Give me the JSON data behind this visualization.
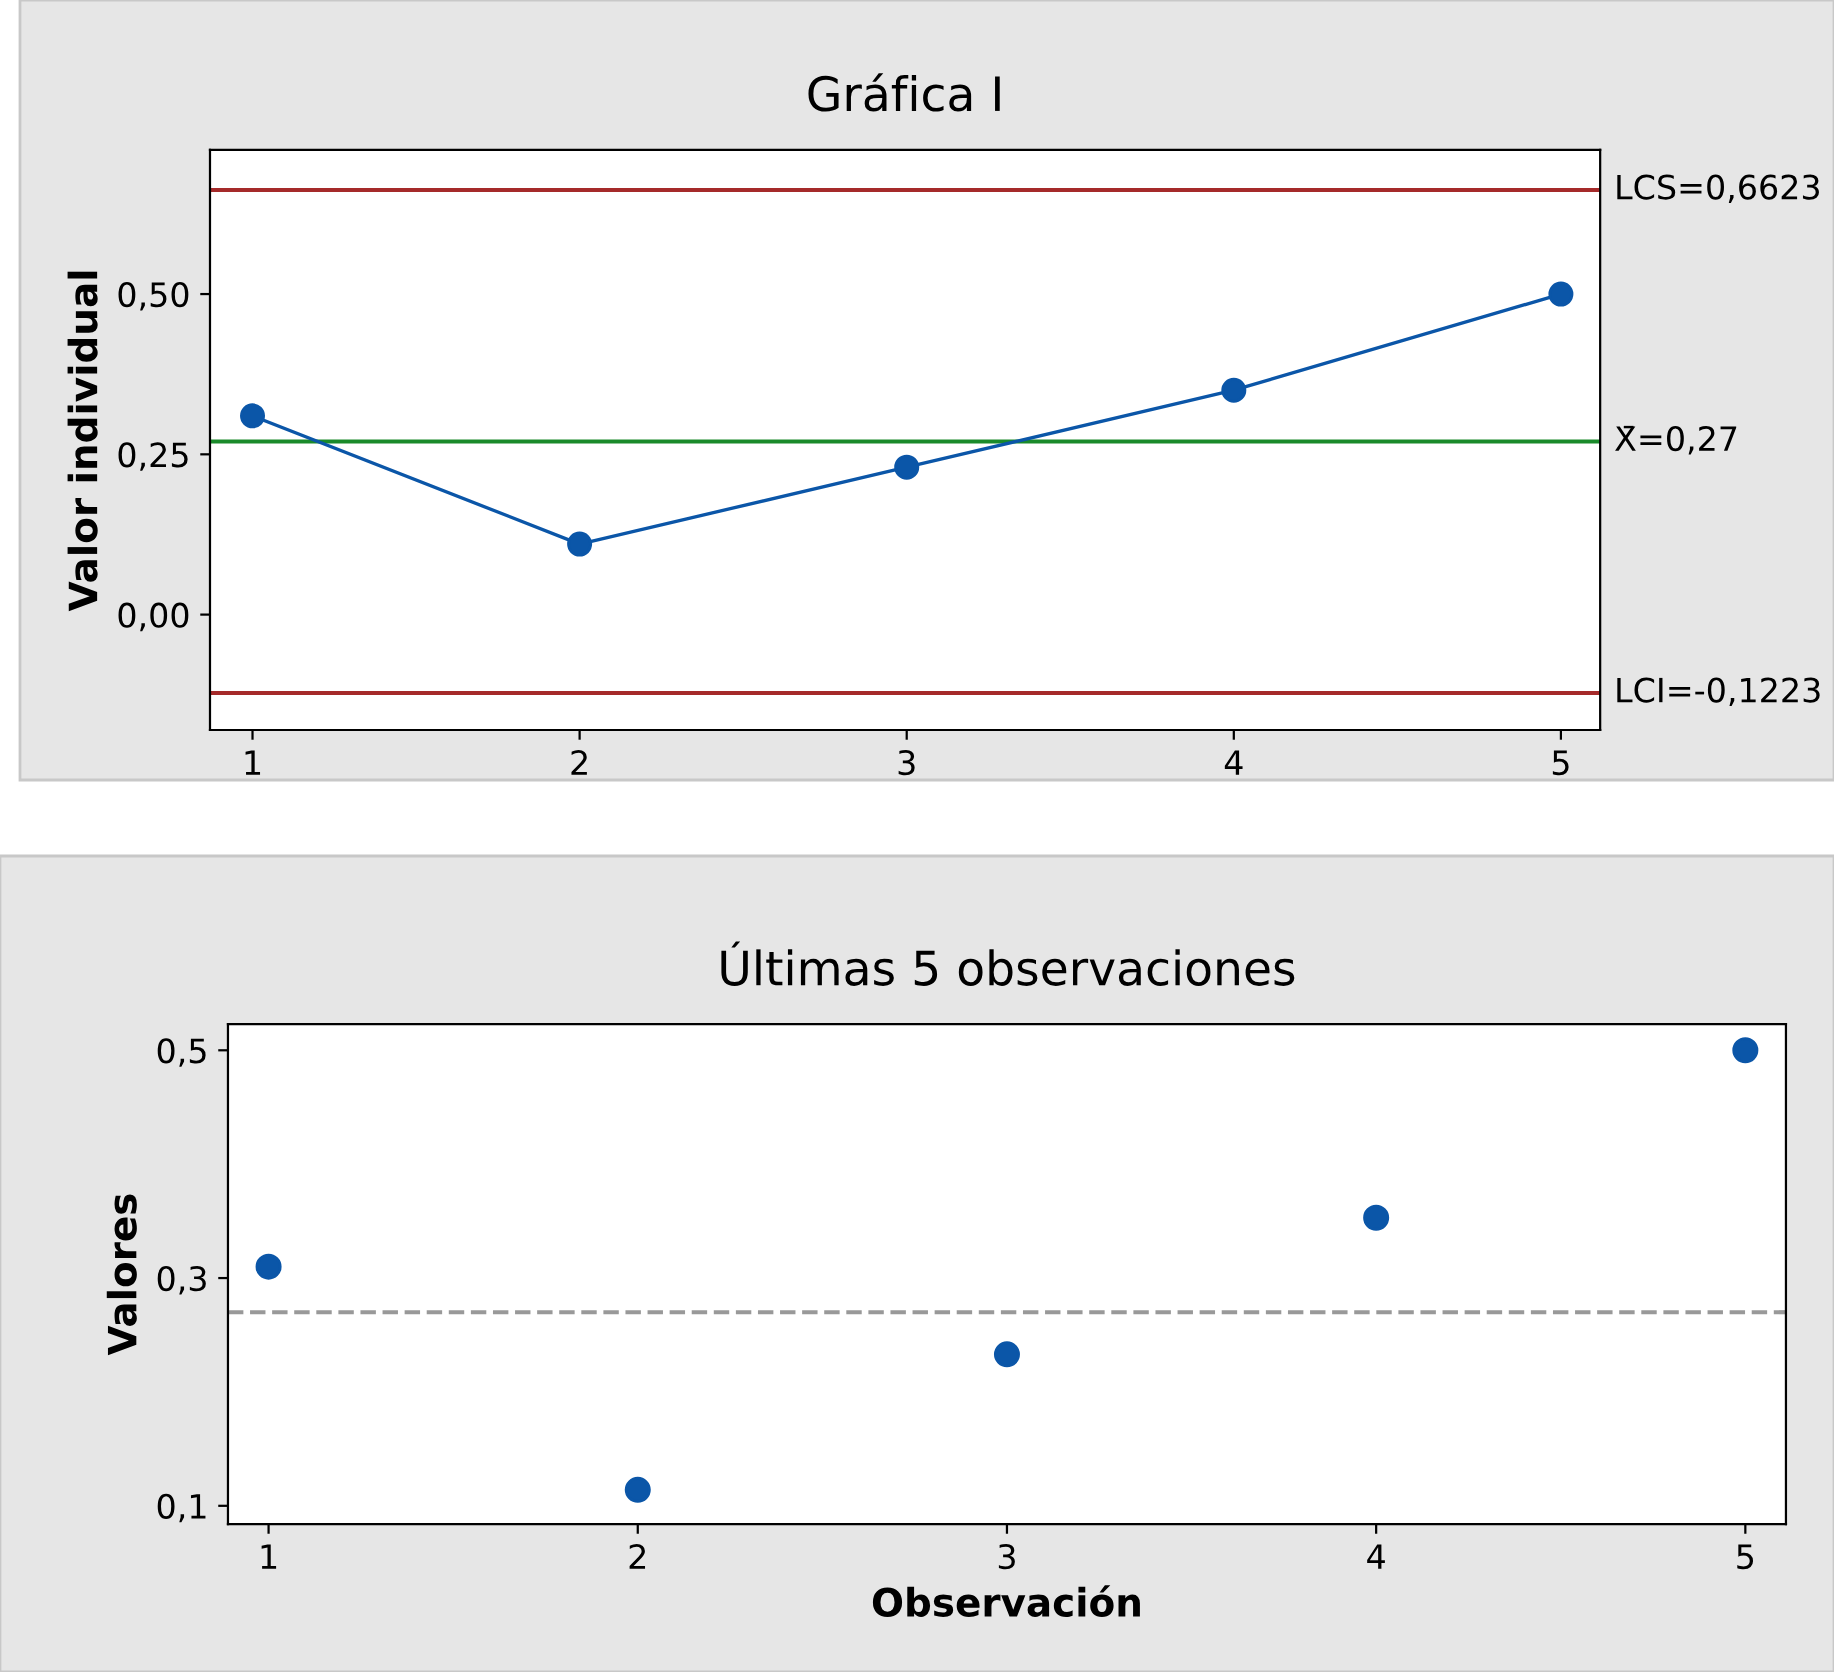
{
  "chart_data": [
    {
      "type": "line",
      "title": "Gráfica I",
      "ylabel": "Valor individual",
      "x": [
        1,
        2,
        3,
        4,
        5
      ],
      "series": [
        {
          "color": "#0b56a8",
          "values": [
            0.31,
            0.11,
            0.23,
            0.35,
            0.5
          ]
        }
      ],
      "marker": "circle",
      "line_style": "solid",
      "xlim": [
        0.87,
        5.12
      ],
      "xticks": [
        1,
        2,
        3,
        4,
        5
      ],
      "ylim": [
        -0.18,
        0.725
      ],
      "yticks": [
        {
          "value": 0.0,
          "label": "0,00"
        },
        {
          "value": 0.25,
          "label": "0,25"
        },
        {
          "value": 0.5,
          "label": "0,50"
        }
      ],
      "ref_lines": [
        {
          "axis": "y",
          "value": 0.6623,
          "label": "LCS=0,6623",
          "color": "#a52a2a",
          "line_style": "solid"
        },
        {
          "axis": "y",
          "value": 0.27,
          "label": "X̄=0,27",
          "color": "#1a8a2a",
          "line_style": "solid"
        },
        {
          "axis": "y",
          "value": -0.1223,
          "label": "LCI=-0,1223",
          "color": "#a52a2a",
          "line_style": "solid"
        }
      ],
      "grid": false,
      "legend": false
    },
    {
      "type": "scatter",
      "title": "Últimas 5 observaciones",
      "xlabel": "Observación",
      "ylabel": "Valores",
      "x": [
        1,
        2,
        3,
        4,
        5
      ],
      "series": [
        {
          "color": "#0b56a8",
          "values": [
            0.31,
            0.114,
            0.233,
            0.353,
            0.5
          ]
        }
      ],
      "marker": "circle",
      "xlim": [
        0.89,
        5.11
      ],
      "xticks": [
        1,
        2,
        3,
        4,
        5
      ],
      "ylim": [
        0.084,
        0.523
      ],
      "yticks": [
        {
          "value": 0.1,
          "label": "0,1"
        },
        {
          "value": 0.3,
          "label": "0,3"
        },
        {
          "value": 0.5,
          "label": "0,5"
        }
      ],
      "ref_lines": [
        {
          "axis": "y",
          "value": 0.27,
          "color": "#999999",
          "line_style": "dashed"
        }
      ],
      "grid": false,
      "legend": false
    }
  ]
}
